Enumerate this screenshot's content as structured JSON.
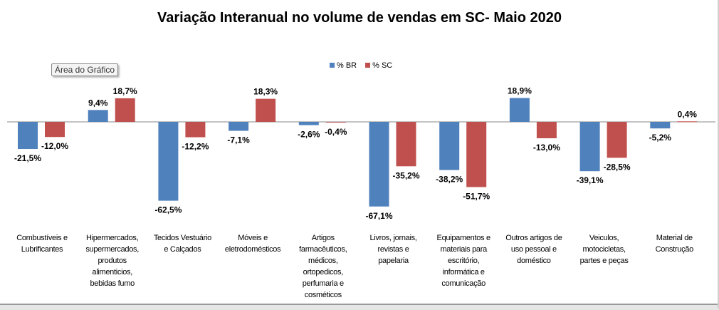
{
  "tooltip": "Área do Gráfico",
  "chart_data": {
    "type": "bar",
    "title": "Variação Interanual no volume de vendas em SC- Maio 2020",
    "categories": [
      "Combustíveis e\nLubrificantes",
      "Hipermercados,\nsupermercados,\nprodutos\nalimenticios,\nbebidas fumo",
      "Tecidos Vestuário\ne Calçados",
      "Móveis e\neletrodomésticos",
      "Artigos\nfarmacêuticos,\nmédicos,\nortopedicos,\nperfumaria e\ncosméticos",
      "Livros, jornais,\nrevistas e\npapelaria",
      "Equipamentos e\nmateriais para\nescritório,\ninformática e\ncomunicação",
      "Outros artigos de\nuso pessoal e\ndoméstico",
      "Veiculos,\nmotocicletas,\npartes e peças",
      "Material de\nConstrução"
    ],
    "series": [
      {
        "name": "% BR",
        "color": "#4f81bd",
        "values": [
          -21.5,
          9.4,
          -62.5,
          -7.1,
          -2.6,
          -67.1,
          -38.2,
          18.9,
          -39.1,
          -5.2
        ],
        "labels": [
          "-21,5%",
          "9,4%",
          "-62,5%",
          "-7,1%",
          "-2,6%",
          "-67,1%",
          "-38,2%",
          "18,9%",
          "-39,1%",
          "-5,2%"
        ]
      },
      {
        "name": "% SC",
        "color": "#c0504d",
        "values": [
          -12.0,
          18.7,
          -12.2,
          18.3,
          -0.4,
          -35.2,
          -51.7,
          -13.0,
          -28.5,
          0.4
        ],
        "labels": [
          "-12,0%",
          "18,7%",
          "-12,2%",
          "18,3%",
          "-0,4%",
          "-35,2%",
          "-51,7%",
          "-13,0%",
          "-28,5%",
          "0,4%"
        ]
      }
    ],
    "legend": "top-center",
    "grid": false
  }
}
